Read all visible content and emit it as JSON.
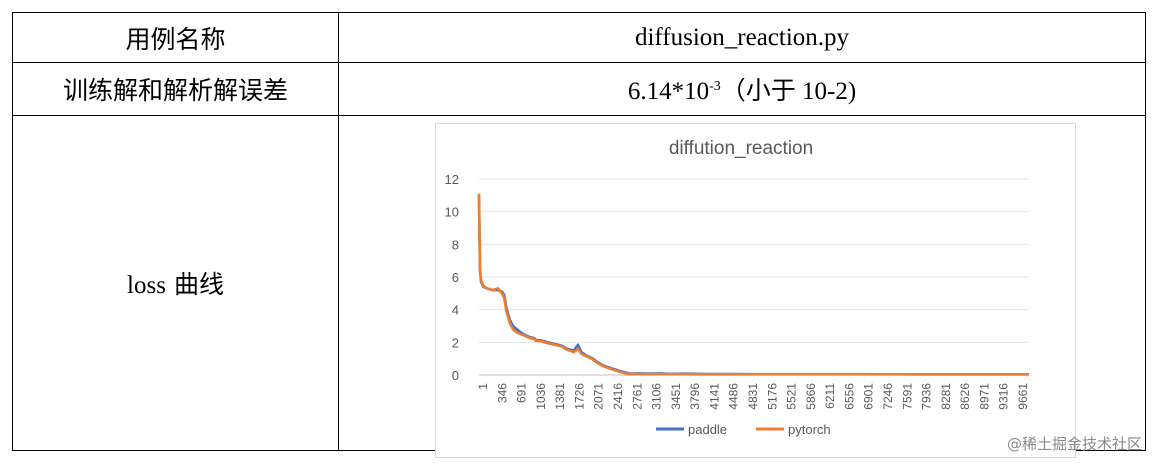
{
  "rows": [
    {
      "label": "用例名称",
      "value": "diffusion_reaction.py"
    },
    {
      "label": "训练解和解析解误差",
      "value_main": "6.14*10",
      "value_sup": "-3",
      "value_note": "（小于 10-2)"
    },
    {
      "label_a": "loss",
      "label_b": "曲线"
    }
  ],
  "watermark": "@稀土掘金技术社区",
  "chart_data": {
    "type": "line",
    "title": "diffution_reaction",
    "xlabel": "",
    "ylabel": "",
    "ylim": [
      0,
      12
    ],
    "yticks": [
      0,
      2,
      4,
      6,
      8,
      10,
      12
    ],
    "xlim": [
      1,
      10000
    ],
    "xticks": [
      "1",
      "346",
      "691",
      "1036",
      "1381",
      "1726",
      "2071",
      "2416",
      "2761",
      "3106",
      "3451",
      "3796",
      "4141",
      "4486",
      "4831",
      "5176",
      "5521",
      "5866",
      "6211",
      "6556",
      "6901",
      "7246",
      "7591",
      "7936",
      "8281",
      "8626",
      "8971",
      "9316",
      "9661"
    ],
    "grid": true,
    "legend_position": "bottom",
    "series": [
      {
        "name": "paddle",
        "color": "#4472c4",
        "x": [
          1,
          10,
          20,
          40,
          80,
          150,
          250,
          346,
          420,
          460,
          500,
          560,
          620,
          691,
          760,
          840,
          900,
          1000,
          1036,
          1150,
          1250,
          1381,
          1500,
          1600,
          1726,
          1800,
          1860,
          1950,
          2071,
          2150,
          2250,
          2416,
          2550,
          2700,
          2761,
          2900,
          3106,
          3300,
          3451,
          3796,
          4141,
          4486,
          5000,
          6000,
          7000,
          8000,
          9000,
          10000
        ],
        "y": [
          11.0,
          8.6,
          6.4,
          5.7,
          5.4,
          5.3,
          5.2,
          5.2,
          5.1,
          4.9,
          4.1,
          3.4,
          3.0,
          2.8,
          2.6,
          2.45,
          2.35,
          2.25,
          2.15,
          2.1,
          2.0,
          1.9,
          1.8,
          1.6,
          1.5,
          1.85,
          1.4,
          1.2,
          1.0,
          0.8,
          0.6,
          0.4,
          0.25,
          0.12,
          0.08,
          0.1,
          0.08,
          0.1,
          0.07,
          0.08,
          0.06,
          0.06,
          0.05,
          0.05,
          0.05,
          0.04,
          0.04,
          0.04
        ]
      },
      {
        "name": "pytorch",
        "color": "#ed7d31",
        "x": [
          1,
          10,
          20,
          40,
          80,
          150,
          250,
          346,
          420,
          460,
          500,
          560,
          620,
          691,
          760,
          840,
          900,
          1000,
          1036,
          1150,
          1250,
          1381,
          1500,
          1600,
          1726,
          1800,
          1860,
          1950,
          2071,
          2150,
          2250,
          2416,
          2550,
          2700,
          2761,
          2900,
          3106,
          3300,
          3451,
          3796,
          4141,
          4486,
          5000,
          6000,
          7000,
          8000,
          9000,
          10000
        ],
        "y": [
          11.1,
          8.8,
          6.5,
          5.8,
          5.45,
          5.3,
          5.2,
          5.3,
          5.0,
          4.7,
          3.9,
          3.2,
          2.8,
          2.6,
          2.5,
          2.4,
          2.3,
          2.2,
          2.1,
          2.05,
          1.95,
          1.85,
          1.75,
          1.55,
          1.4,
          1.6,
          1.3,
          1.15,
          0.95,
          0.75,
          0.55,
          0.35,
          0.2,
          0.08,
          0.05,
          0.06,
          0.05,
          0.06,
          0.05,
          0.05,
          0.04,
          0.04,
          0.04,
          0.04,
          0.04,
          0.04,
          0.04,
          0.04
        ]
      }
    ]
  }
}
